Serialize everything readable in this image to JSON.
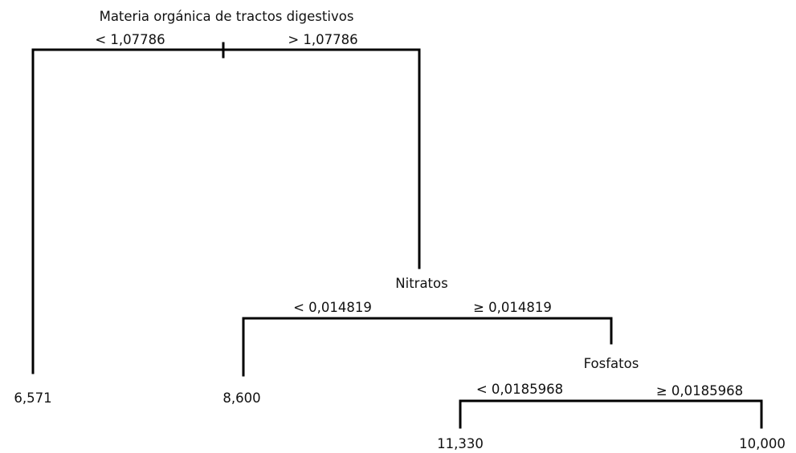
{
  "root": {
    "variable": "Materia orgánica de tractos digestivos",
    "left_condition": "< 1,07786",
    "right_condition": "> 1,07786"
  },
  "nodes": [
    {
      "variable": "Nitratos",
      "left_condition": "< 0,014819",
      "right_condition": "≥ 0,014819"
    },
    {
      "variable": "Fosfatos",
      "left_condition": "< 0,0185968",
      "right_condition": "≥ 0,0185968"
    }
  ],
  "leaves": [
    "6,571",
    "8,600",
    "11,330",
    "10,000"
  ]
}
